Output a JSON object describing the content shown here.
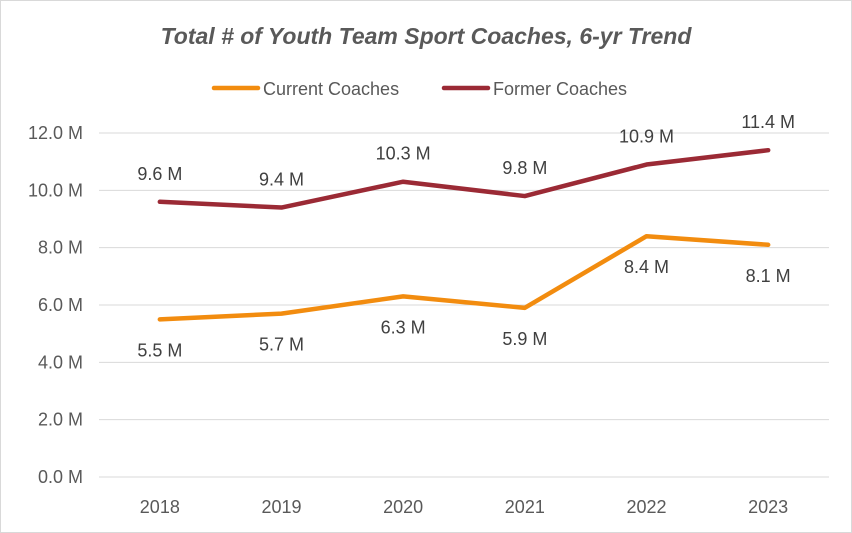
{
  "chart_data": {
    "type": "line",
    "title": "Total # of Youth Team Sport Coaches, 6-yr Trend",
    "xlabel": "",
    "ylabel": "",
    "categories": [
      "2018",
      "2019",
      "2020",
      "2021",
      "2022",
      "2023"
    ],
    "ylim": [
      0,
      12
    ],
    "yticks": [
      0,
      2,
      4,
      6,
      8,
      10,
      12
    ],
    "ytick_labels": [
      "0.0 M",
      "2.0 M",
      "4.0 M",
      "6.0 M",
      "8.0 M",
      "10.0 M",
      "12.0 M"
    ],
    "grid": true,
    "legend_position": "top",
    "series": [
      {
        "name": "Current Coaches",
        "color": "#f28c0f",
        "values": [
          5.5,
          5.7,
          6.3,
          5.9,
          8.4,
          8.1
        ],
        "labels": [
          "5.5 M",
          "5.7 M",
          "6.3 M",
          "5.9 M",
          "8.4 M",
          "8.1 M"
        ],
        "label_position": "below"
      },
      {
        "name": "Former Coaches",
        "color": "#9b2a35",
        "values": [
          9.6,
          9.4,
          10.3,
          9.8,
          10.9,
          11.4
        ],
        "labels": [
          "9.6 M",
          "9.4 M",
          "10.3 M",
          "9.8 M",
          "10.9 M",
          "11.4 M"
        ],
        "label_position": "above"
      }
    ]
  }
}
